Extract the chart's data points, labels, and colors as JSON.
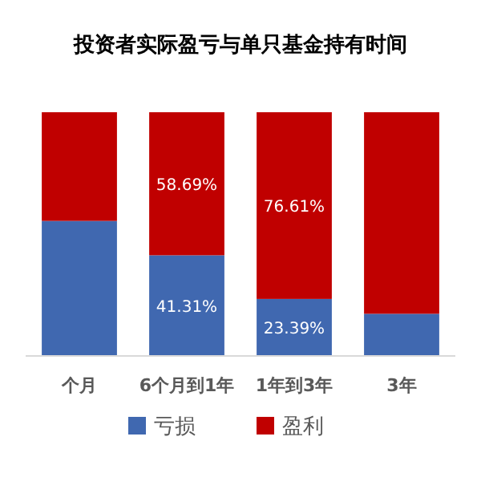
{
  "chart_data": {
    "type": "bar",
    "title": "投资者实际盈亏与单只基金持有时间",
    "stacked": true,
    "categories": [
      "个月",
      "6个月到1年",
      "1年到3年",
      "3年"
    ],
    "legend": "bottom",
    "series": [
      {
        "name": "亏损",
        "color": "#4068b0",
        "values": [
          55.4,
          41.31,
          23.39,
          17.3
        ],
        "value_labels": [
          null,
          "41.31%",
          "23.39%",
          null
        ]
      },
      {
        "name": "盈利",
        "color": "#c00000",
        "values": [
          44.6,
          58.69,
          76.61,
          82.7
        ],
        "value_labels": [
          null,
          "58.69%",
          "76.61%",
          null
        ]
      }
    ]
  }
}
